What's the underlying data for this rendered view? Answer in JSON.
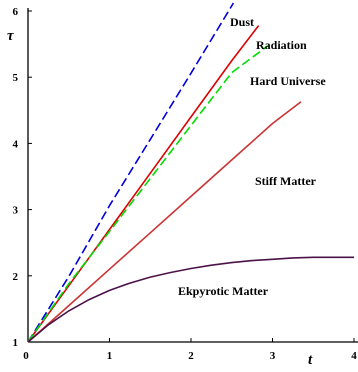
{
  "chart_data": {
    "type": "line",
    "xlabel": "t",
    "ylabel": "τ",
    "xlim": [
      0,
      4
    ],
    "ylim": [
      1,
      6.2
    ],
    "x_ticks": [
      "0",
      "1",
      "2",
      "3",
      "4"
    ],
    "y_ticks": [
      "1",
      "2",
      "3",
      "4",
      "5",
      "6"
    ],
    "grid": false,
    "legend": "inline-labels",
    "series": [
      {
        "name": "Dust",
        "color": "#0000dd",
        "dash": "dashed",
        "x": [
          0,
          0.5,
          1.0,
          1.5,
          2.0,
          2.52
        ],
        "y": [
          1.0,
          1.99,
          3.06,
          4.06,
          5.06,
          6.12
        ]
      },
      {
        "name": "Radiation",
        "color": "#dd0000",
        "dash": "solid",
        "x": [
          0,
          0.5,
          1.0,
          1.5,
          2.0,
          2.5,
          2.83
        ],
        "y": [
          1.0,
          1.85,
          2.7,
          3.55,
          4.4,
          5.25,
          5.78
        ]
      },
      {
        "name": "Hard Universe",
        "color": "#00dd00",
        "dash": "dashed",
        "x": [
          0,
          0.5,
          1.0,
          1.5,
          2.0,
          2.5,
          2.95
        ],
        "y": [
          1.0,
          1.88,
          2.67,
          3.47,
          4.27,
          5.07,
          5.48
        ]
      },
      {
        "name": "Stiff Matter",
        "color": "#cc3333",
        "dash": "solid",
        "x": [
          0,
          0.5,
          1.0,
          1.5,
          2.0,
          2.5,
          3.0,
          3.35
        ],
        "y": [
          1.0,
          1.55,
          2.1,
          2.65,
          3.2,
          3.75,
          4.3,
          4.63
        ]
      },
      {
        "name": "Ekpyrotic Matter",
        "color": "#4b1248",
        "dash": "solid",
        "x": [
          0,
          0.25,
          0.5,
          0.75,
          1.0,
          1.25,
          1.5,
          1.75,
          2.0,
          2.25,
          2.5,
          2.75,
          3.0,
          3.25,
          3.5,
          3.75,
          4.0
        ],
        "y": [
          1.0,
          1.26,
          1.47,
          1.64,
          1.78,
          1.89,
          1.98,
          2.05,
          2.11,
          2.16,
          2.2,
          2.23,
          2.25,
          2.27,
          2.28,
          2.28,
          2.28
        ]
      }
    ]
  }
}
